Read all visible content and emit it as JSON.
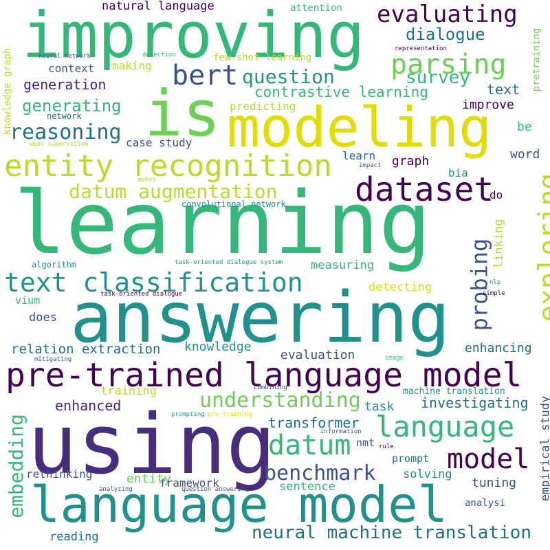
{
  "words": [
    {
      "text": "learning",
      "color": "#35b779"
    },
    {
      "text": "answering",
      "color": "#21918c"
    },
    {
      "text": "using",
      "color": "#472d7b"
    },
    {
      "text": "improving",
      "color": "#35b779"
    },
    {
      "text": "modeling",
      "color": "#e1dd00"
    },
    {
      "text": "is",
      "color": "#6ece58"
    },
    {
      "text": "language model",
      "color": "#21918c"
    },
    {
      "text": "pre-trained language model",
      "color": "#440154"
    },
    {
      "text": "entity recognition",
      "color": "#b5de2b"
    },
    {
      "text": "text classification",
      "color": "#21918c"
    },
    {
      "text": "dataset",
      "color": "#440154"
    },
    {
      "text": "evaluating",
      "color": "#440154"
    },
    {
      "text": "parsing",
      "color": "#6ece58"
    },
    {
      "text": "bert",
      "color": "#3b528b"
    },
    {
      "text": "question",
      "color": "#21918c"
    },
    {
      "text": "reasoning",
      "color": "#1f6f8b"
    },
    {
      "text": "exploring",
      "color": "#b5de2b"
    },
    {
      "text": "probing",
      "color": "#3b528b"
    },
    {
      "text": "language",
      "color": "#35b779"
    },
    {
      "text": "model",
      "color": "#440154"
    },
    {
      "text": "datum",
      "color": "#35b779"
    },
    {
      "text": "benchmark",
      "color": "#3b528b"
    },
    {
      "text": "neural machine translation",
      "color": "#1f6f8b"
    },
    {
      "text": "understanding",
      "color": "#6ece58"
    },
    {
      "text": "embedding",
      "color": "#35b779"
    },
    {
      "text": "datum augmentation",
      "color": "#b5de2b"
    },
    {
      "text": "dialogue",
      "color": "#1f6f8b"
    },
    {
      "text": "survey",
      "color": "#35b779"
    },
    {
      "text": "contrastive learning",
      "color": "#35b779"
    },
    {
      "text": "generating",
      "color": "#35b779"
    },
    {
      "text": "generation",
      "color": "#482475"
    },
    {
      "text": "context",
      "color": "#3b528b"
    },
    {
      "text": "making",
      "color": "#b5de2b"
    },
    {
      "text": "natural language",
      "color": "#440154"
    },
    {
      "text": "text",
      "color": "#1f6f8b"
    },
    {
      "text": "improve",
      "color": "#440154"
    },
    {
      "text": "be",
      "color": "#35b779"
    },
    {
      "text": "word",
      "color": "#3b528b"
    },
    {
      "text": "graph",
      "color": "#440154"
    },
    {
      "text": "learn",
      "color": "#1f6f8b"
    },
    {
      "text": "bia",
      "color": "#21918c"
    },
    {
      "text": "do",
      "color": "#440154"
    },
    {
      "text": "linking",
      "color": "#b5de2b"
    },
    {
      "text": "relation extraction",
      "color": "#1f6f8b"
    },
    {
      "text": "knowledge",
      "color": "#21918c"
    },
    {
      "text": "evaluation",
      "color": "#3b528b"
    },
    {
      "text": "enhancing",
      "color": "#1f6f8b"
    },
    {
      "text": "measuring",
      "color": "#35b779"
    },
    {
      "text": "detecting",
      "color": "#e1dd00"
    },
    {
      "text": "does",
      "color": "#3b528b"
    },
    {
      "text": "vium",
      "color": "#35b779"
    },
    {
      "text": "enhanced",
      "color": "#482475"
    },
    {
      "text": "training",
      "color": "#b5de2b"
    },
    {
      "text": "task",
      "color": "#21918c"
    },
    {
      "text": "transformer",
      "color": "#1f6f8b"
    },
    {
      "text": "investigating",
      "color": "#1f6f8b"
    },
    {
      "text": "machine translation",
      "color": "#21918c"
    },
    {
      "text": "empirical study",
      "color": "#3b528b"
    },
    {
      "text": "rethinking",
      "color": "#3b528b"
    },
    {
      "text": "entity",
      "color": "#6ece58"
    },
    {
      "text": "framework",
      "color": "#3b528b"
    },
    {
      "text": "sentence",
      "color": "#35b779"
    },
    {
      "text": "solving",
      "color": "#21918c"
    },
    {
      "text": "tuning",
      "color": "#3b528b"
    },
    {
      "text": "prompt",
      "color": "#1f6f8b"
    },
    {
      "text": "nmt",
      "color": "#3b528b"
    },
    {
      "text": "analysi",
      "color": "#3b528b"
    },
    {
      "text": "reading",
      "color": "#1f6f8b"
    },
    {
      "text": "case study",
      "color": "#3b528b"
    },
    {
      "text": "predicting",
      "color": "#b5de2b"
    },
    {
      "text": "few-shot learning",
      "color": "#b5de2b"
    },
    {
      "text": "attention",
      "color": "#35b779"
    },
    {
      "text": "pretraining",
      "color": "#6ece58"
    },
    {
      "text": "knowledge graph",
      "color": "#b5de2b"
    },
    {
      "text": "network",
      "color": "#1f6f8b"
    },
    {
      "text": "neural network",
      "color": "#3b528b"
    },
    {
      "text": "detection",
      "color": "#35b779"
    },
    {
      "text": "representation",
      "color": "#440154"
    },
    {
      "text": "weak supervision",
      "color": "#b5de2b"
    },
    {
      "text": "impact",
      "color": "#3b528b"
    },
    {
      "text": "makes",
      "color": "#b5de2b"
    },
    {
      "text": "convolutional network",
      "color": "#21918c"
    },
    {
      "text": "algorithm",
      "color": "#21918c"
    },
    {
      "text": "task-oriented dialogue system",
      "color": "#21918c"
    },
    {
      "text": "task-oriented dialogue",
      "color": "#440154"
    },
    {
      "text": "nlp",
      "color": "#21918c"
    },
    {
      "text": "simple",
      "color": "#440154"
    },
    {
      "text": "mitigating",
      "color": "#3b528b"
    },
    {
      "text": "image",
      "color": "#35b779"
    },
    {
      "text": "combining",
      "color": "#3b528b"
    },
    {
      "text": "prompting",
      "color": "#21918c"
    },
    {
      "text": "pre-training",
      "color": "#e1dd00"
    },
    {
      "text": "information",
      "color": "#3b528b"
    },
    {
      "text": "rule",
      "color": "#440154"
    },
    {
      "text": "analyzing",
      "color": "#3b528b"
    },
    {
      "text": "question answering",
      "color": "#3b528b"
    }
  ]
}
